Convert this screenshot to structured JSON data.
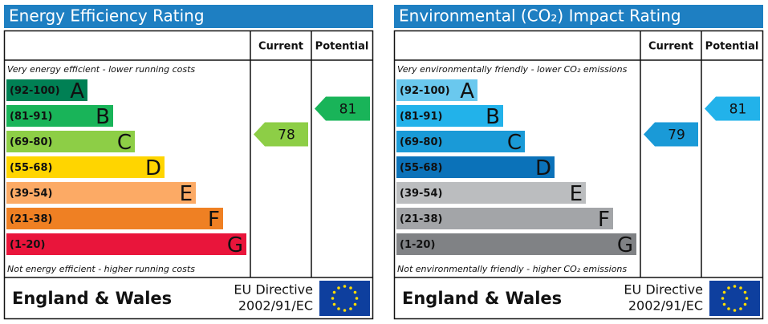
{
  "panels": [
    {
      "title": "Energy Efficiency Rating",
      "current_label": "Current",
      "potential_label": "Potential",
      "top_note": "Very energy efficient - lower running costs",
      "bottom_note": "Not energy efficient - higher running costs",
      "bands": [
        {
          "range": "(92-100)",
          "letter": "A",
          "color": "#008054"
        },
        {
          "range": "(81-91)",
          "letter": "B",
          "color": "#19b459"
        },
        {
          "range": "(69-80)",
          "letter": "C",
          "color": "#8dce46"
        },
        {
          "range": "(55-68)",
          "letter": "D",
          "color": "#ffd500"
        },
        {
          "range": "(39-54)",
          "letter": "E",
          "color": "#fcaa65"
        },
        {
          "range": "(21-38)",
          "letter": "F",
          "color": "#ef8023"
        },
        {
          "range": "(1-20)",
          "letter": "G",
          "color": "#e9153b"
        }
      ],
      "current": 78,
      "potential": 81,
      "region": "England & Wales",
      "directive_1": "EU Directive",
      "directive_2": "2002/91/EC"
    },
    {
      "title": "Environmental (CO₂) Impact Rating",
      "current_label": "Current",
      "potential_label": "Potential",
      "top_note": "Very environmentally friendly - lower CO₂ emissions",
      "bottom_note": "Not environmentally friendly - higher CO₂ emissions",
      "bands": [
        {
          "range": "(92-100)",
          "letter": "A",
          "color": "#6ac8ee"
        },
        {
          "range": "(81-91)",
          "letter": "B",
          "color": "#22b2ea"
        },
        {
          "range": "(69-80)",
          "letter": "C",
          "color": "#1a9ad7"
        },
        {
          "range": "(55-68)",
          "letter": "D",
          "color": "#0b72b9"
        },
        {
          "range": "(39-54)",
          "letter": "E",
          "color": "#bbbdbf"
        },
        {
          "range": "(21-38)",
          "letter": "F",
          "color": "#a3a5a8"
        },
        {
          "range": "(1-20)",
          "letter": "G",
          "color": "#808285"
        }
      ],
      "current": 79,
      "potential": 81,
      "region": "England & Wales",
      "directive_1": "EU Directive",
      "directive_2": "2002/91/EC"
    }
  ]
}
